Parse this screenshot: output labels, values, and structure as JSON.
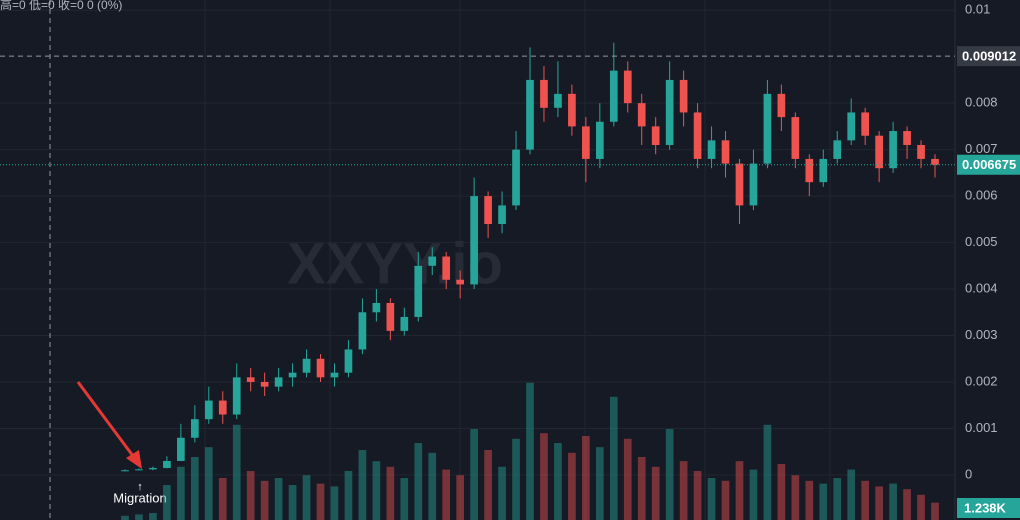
{
  "chart_data": {
    "type": "candlestick",
    "ohlc_header": "高=0 低=0 收=0 0 (0%)",
    "watermark": "XXYY.io",
    "annotation": "Migration",
    "up_color": "#26a69a",
    "down_color": "#ef5350",
    "ylim": [
      -0.00097,
      0.01022
    ],
    "yticks": [
      0,
      0.001,
      0.002,
      0.003,
      0.004,
      0.005,
      0.006,
      0.007,
      0.008,
      0.01
    ],
    "y2lim": [
      0,
      10000
    ],
    "crosshair_price": 0.009012,
    "last_price": 0.006675,
    "last_volume": {
      "value": 1238,
      "label": "1.238K"
    },
    "open": [
      0.0001,
      0.0001,
      0.00012,
      0.00015,
      0.0003,
      0.0008,
      0.0012,
      0.0016,
      0.0013,
      0.0021,
      0.002,
      0.0019,
      0.0021,
      0.0022,
      0.0025,
      0.0021,
      0.0022,
      0.0027,
      0.0035,
      0.0037,
      0.0031,
      0.0034,
      0.0045,
      0.0047,
      0.0042,
      0.0041,
      0.006,
      0.0054,
      0.0058,
      0.007,
      0.0085,
      0.0079,
      0.0082,
      0.0075,
      0.0068,
      0.0076,
      0.0087,
      0.008,
      0.0075,
      0.0071,
      0.0085,
      0.0078,
      0.0068,
      0.0072,
      0.0067,
      0.0058,
      0.0067,
      0.0082,
      0.0077,
      0.0068,
      0.0063,
      0.0068,
      0.0072,
      0.0078,
      0.0073,
      0.0066,
      0.0074,
      0.0071,
      0.0068
    ],
    "high": [
      0.00012,
      0.00014,
      0.00018,
      0.0004,
      0.0011,
      0.0015,
      0.0019,
      0.0018,
      0.0024,
      0.0023,
      0.0022,
      0.0023,
      0.0024,
      0.0027,
      0.0026,
      0.0024,
      0.0029,
      0.0038,
      0.004,
      0.0038,
      0.0036,
      0.0048,
      0.0049,
      0.0048,
      0.0044,
      0.0064,
      0.0061,
      0.0061,
      0.0074,
      0.0092,
      0.0088,
      0.0089,
      0.0084,
      0.0077,
      0.008,
      0.0093,
      0.0089,
      0.0082,
      0.0077,
      0.0089,
      0.0087,
      0.008,
      0.0075,
      0.0074,
      0.0068,
      0.007,
      0.0085,
      0.0084,
      0.0078,
      0.0069,
      0.007,
      0.0074,
      0.0081,
      0.0079,
      0.0074,
      0.0076,
      0.0075,
      0.0072,
      0.0069
    ],
    "low": [
      8e-05,
      0.0001,
      0.0001,
      0.00014,
      0.0003,
      0.0007,
      0.0011,
      0.0011,
      0.0012,
      0.0018,
      0.0017,
      0.0018,
      0.0019,
      0.0021,
      0.002,
      0.0019,
      0.0021,
      0.0026,
      0.0033,
      0.0029,
      0.003,
      0.0033,
      0.0043,
      0.004,
      0.0038,
      0.004,
      0.0051,
      0.0052,
      0.0057,
      0.0069,
      0.0076,
      0.0077,
      0.0073,
      0.0063,
      0.0066,
      0.0075,
      0.0078,
      0.0071,
      0.0069,
      0.007,
      0.0075,
      0.0066,
      0.0066,
      0.0064,
      0.0054,
      0.0057,
      0.0066,
      0.0074,
      0.0066,
      0.006,
      0.0062,
      0.0067,
      0.0071,
      0.0071,
      0.0063,
      0.0065,
      0.0068,
      0.0066,
      0.0064
    ],
    "close": [
      0.0001,
      0.00012,
      0.00015,
      0.0003,
      0.0008,
      0.0012,
      0.0016,
      0.0013,
      0.0021,
      0.002,
      0.0019,
      0.0021,
      0.0022,
      0.0025,
      0.0021,
      0.0022,
      0.0027,
      0.0035,
      0.0037,
      0.0031,
      0.0034,
      0.0045,
      0.0047,
      0.0042,
      0.0041,
      0.006,
      0.0054,
      0.0058,
      0.007,
      0.0085,
      0.0079,
      0.0082,
      0.0075,
      0.0068,
      0.0076,
      0.0087,
      0.008,
      0.0075,
      0.0071,
      0.0085,
      0.0078,
      0.0068,
      0.0072,
      0.0067,
      0.0058,
      0.0067,
      0.0082,
      0.0077,
      0.0068,
      0.0063,
      0.0068,
      0.0072,
      0.0078,
      0.0073,
      0.0066,
      0.0074,
      0.0071,
      0.0068,
      0.006675
    ],
    "volumes": [
      300,
      400,
      500,
      2500,
      3800,
      4500,
      5200,
      3000,
      6800,
      3500,
      2800,
      3000,
      2500,
      3200,
      2600,
      2400,
      3500,
      5000,
      4200,
      3800,
      3000,
      5500,
      4800,
      3600,
      3200,
      6500,
      5000,
      3800,
      5800,
      9800,
      6200,
      5500,
      4800,
      6000,
      5200,
      8800,
      5800,
      4500,
      3800,
      6500,
      4200,
      3500,
      3000,
      2800,
      4200,
      3600,
      6800,
      4000,
      3200,
      2800,
      2600,
      3000,
      3600,
      2800,
      2400,
      2600,
      2200,
      1800,
      1238
    ]
  }
}
